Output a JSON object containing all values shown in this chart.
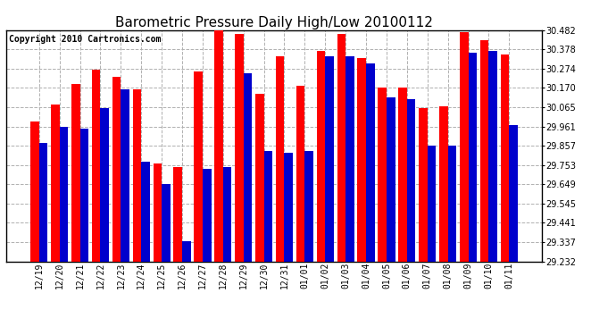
{
  "title": "Barometric Pressure Daily High/Low 20100112",
  "copyright": "Copyright 2010 Cartronics.com",
  "labels": [
    "12/19",
    "12/20",
    "12/21",
    "12/22",
    "12/23",
    "12/24",
    "12/25",
    "12/26",
    "12/27",
    "12/28",
    "12/29",
    "12/30",
    "12/31",
    "01/01",
    "01/02",
    "01/03",
    "01/04",
    "01/05",
    "01/06",
    "01/07",
    "01/08",
    "01/09",
    "01/10",
    "01/11"
  ],
  "highs": [
    29.99,
    30.08,
    30.19,
    30.27,
    30.23,
    30.16,
    29.76,
    29.74,
    30.26,
    30.49,
    30.46,
    30.14,
    30.34,
    30.18,
    30.37,
    30.46,
    30.33,
    30.17,
    30.17,
    30.06,
    30.07,
    30.47,
    30.43,
    30.35
  ],
  "lows": [
    29.87,
    29.96,
    29.95,
    30.06,
    30.16,
    29.77,
    29.65,
    29.34,
    29.73,
    29.74,
    30.25,
    29.83,
    29.82,
    29.83,
    30.34,
    30.34,
    30.3,
    30.12,
    30.11,
    29.86,
    29.86,
    30.36,
    30.37,
    29.97
  ],
  "high_color": "#ff0000",
  "low_color": "#0000cc",
  "bg_color": "#ffffff",
  "plot_bg_color": "#ffffff",
  "grid_color": "#b0b0b0",
  "ylim_min": 29.232,
  "ylim_max": 30.482,
  "yticks": [
    29.232,
    29.337,
    29.441,
    29.545,
    29.649,
    29.753,
    29.857,
    29.961,
    30.065,
    30.17,
    30.274,
    30.378,
    30.482
  ],
  "title_fontsize": 11,
  "copyright_fontsize": 7,
  "tick_fontsize": 7
}
